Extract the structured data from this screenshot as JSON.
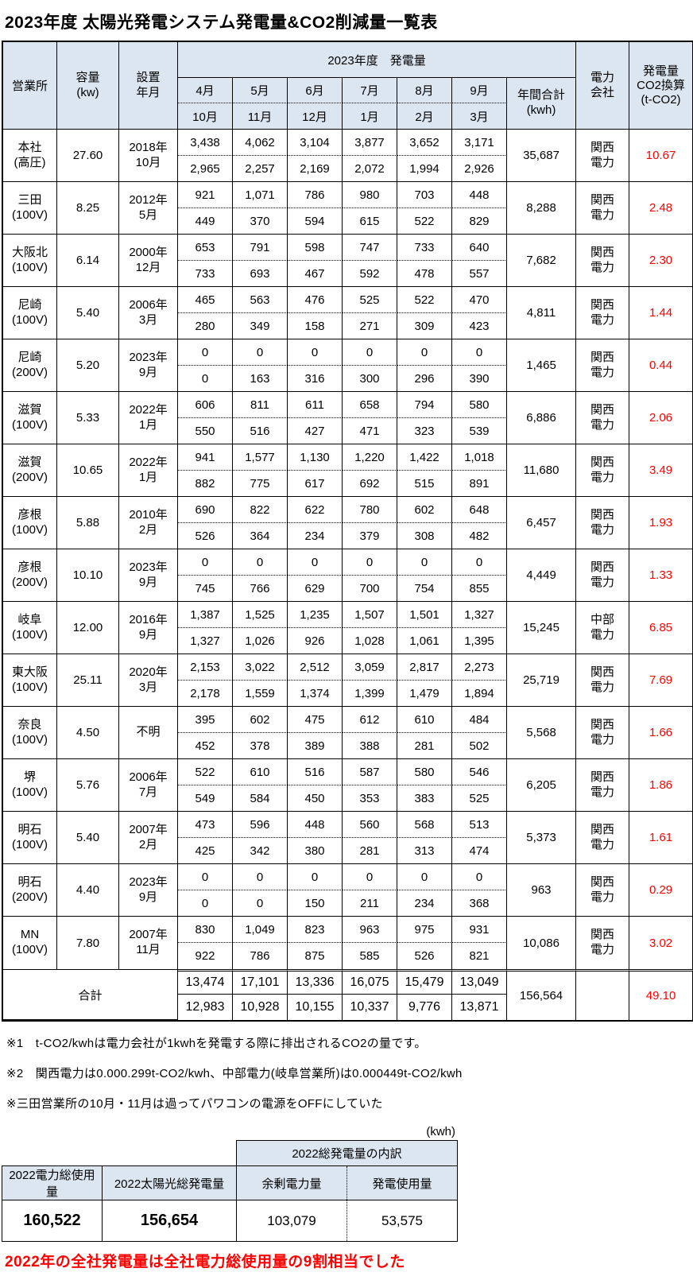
{
  "title": "2023年度 太陽光発電システム発電量&CO2削減量一覧表",
  "colors": {
    "header_bg": "#dce6f1",
    "accent_red": "#ff0000",
    "border": "#000000",
    "comment_marker": "#c00000"
  },
  "table": {
    "col_headers": {
      "office": "営業所",
      "capacity": "容量\n(kw)",
      "installed": "設置\n年月",
      "generation_group": "2023年度　発電量",
      "months_top": [
        "4月",
        "5月",
        "6月",
        "7月",
        "8月",
        "9月"
      ],
      "months_bottom": [
        "10月",
        "11月",
        "12月",
        "1月",
        "2月",
        "3月"
      ],
      "annual": "年間合計\n(kwh)",
      "company": "電力\n会社",
      "co2": "発電量\nCO2換算\n(t-CO2)"
    },
    "rows": [
      {
        "office": "本社\n(高圧)",
        "capacity": "27.60",
        "installed": "2018年\n10月",
        "top": [
          "3,438",
          "4,062",
          "3,104",
          "3,877",
          "3,652",
          "3,171"
        ],
        "bottom": [
          "2,965",
          "2,257",
          "2,169",
          "2,072",
          "1,994",
          "2,926"
        ],
        "annual": "35,687",
        "company": "関西\n電力",
        "co2": "10.67"
      },
      {
        "office": "三田\n(100V)",
        "capacity": "8.25",
        "installed": "2012年\n5月",
        "top": [
          "921",
          "1,071",
          "786",
          "980",
          "703",
          "448"
        ],
        "bottom": [
          "449",
          "370",
          "594",
          "615",
          "522",
          "829"
        ],
        "annual": "8,288",
        "company": "関西\n電力",
        "co2": "2.48",
        "comment_marks_bottom": [
          0,
          1
        ]
      },
      {
        "office": "大阪北\n(100V)",
        "capacity": "6.14",
        "installed": "2000年\n12月",
        "top": [
          "653",
          "791",
          "598",
          "747",
          "733",
          "640"
        ],
        "bottom": [
          "733",
          "693",
          "467",
          "592",
          "478",
          "557"
        ],
        "annual": "7,682",
        "company": "関西\n電力",
        "co2": "2.30"
      },
      {
        "office": "尼崎\n(100V)",
        "capacity": "5.40",
        "installed": "2006年\n3月",
        "top": [
          "465",
          "563",
          "476",
          "525",
          "522",
          "470"
        ],
        "bottom": [
          "280",
          "349",
          "158",
          "271",
          "309",
          "423"
        ],
        "annual": "4,811",
        "company": "関西\n電力",
        "co2": "1.44"
      },
      {
        "office": "尼崎\n(200V)",
        "capacity": "5.20",
        "installed": "2023年\n9月",
        "top": [
          "0",
          "0",
          "0",
          "0",
          "0",
          "0"
        ],
        "bottom": [
          "0",
          "163",
          "316",
          "300",
          "296",
          "390"
        ],
        "annual": "1,465",
        "company": "関西\n電力",
        "co2": "0.44"
      },
      {
        "office": "滋賀\n(100V)",
        "capacity": "5.33",
        "installed": "2022年\n1月",
        "top": [
          "606",
          "811",
          "611",
          "658",
          "794",
          "580"
        ],
        "bottom": [
          "550",
          "516",
          "427",
          "471",
          "323",
          "539"
        ],
        "annual": "6,886",
        "company": "関西\n電力",
        "co2": "2.06"
      },
      {
        "office": "滋賀\n(200V)",
        "capacity": "10.65",
        "installed": "2022年\n1月",
        "top": [
          "941",
          "1,577",
          "1,130",
          "1,220",
          "1,422",
          "1,018"
        ],
        "bottom": [
          "882",
          "775",
          "617",
          "692",
          "515",
          "891"
        ],
        "annual": "11,680",
        "company": "関西\n電力",
        "co2": "3.49"
      },
      {
        "office": "彦根\n(100V)",
        "capacity": "5.88",
        "installed": "2010年\n2月",
        "top": [
          "690",
          "822",
          "622",
          "780",
          "602",
          "648"
        ],
        "bottom": [
          "526",
          "364",
          "234",
          "379",
          "308",
          "482"
        ],
        "annual": "6,457",
        "company": "関西\n電力",
        "co2": "1.93"
      },
      {
        "office": "彦根\n(200V)",
        "capacity": "10.10",
        "installed": "2023年\n9月",
        "top": [
          "0",
          "0",
          "0",
          "0",
          "0",
          "0"
        ],
        "bottom": [
          "745",
          "766",
          "629",
          "700",
          "754",
          "855"
        ],
        "annual": "4,449",
        "company": "関西\n電力",
        "co2": "1.33"
      },
      {
        "office": "岐阜\n(100V)",
        "capacity": "12.00",
        "installed": "2016年\n9月",
        "top": [
          "1,387",
          "1,525",
          "1,235",
          "1,507",
          "1,501",
          "1,327"
        ],
        "bottom": [
          "1,327",
          "1,026",
          "926",
          "1,028",
          "1,061",
          "1,395"
        ],
        "annual": "15,245",
        "company": "中部\n電力",
        "co2": "6.85"
      },
      {
        "office": "東大阪\n(100V)",
        "capacity": "25.11",
        "installed": "2020年\n3月",
        "top": [
          "2,153",
          "3,022",
          "2,512",
          "3,059",
          "2,817",
          "2,273"
        ],
        "bottom": [
          "2,178",
          "1,559",
          "1,374",
          "1,399",
          "1,479",
          "1,894"
        ],
        "annual": "25,719",
        "company": "関西\n電力",
        "co2": "7.69"
      },
      {
        "office": "奈良\n(100V)",
        "capacity": "4.50",
        "installed": "不明",
        "top": [
          "395",
          "602",
          "475",
          "612",
          "610",
          "484"
        ],
        "bottom": [
          "452",
          "378",
          "389",
          "388",
          "281",
          "502"
        ],
        "annual": "5,568",
        "company": "関西\n電力",
        "co2": "1.66"
      },
      {
        "office": "堺\n(100V)",
        "capacity": "5.76",
        "installed": "2006年\n7月",
        "top": [
          "522",
          "610",
          "516",
          "587",
          "580",
          "546"
        ],
        "bottom": [
          "549",
          "584",
          "450",
          "353",
          "383",
          "525"
        ],
        "annual": "6,205",
        "company": "関西\n電力",
        "co2": "1.86"
      },
      {
        "office": "明石\n(100V)",
        "capacity": "5.40",
        "installed": "2007年\n2月",
        "top": [
          "473",
          "596",
          "448",
          "560",
          "568",
          "513"
        ],
        "bottom": [
          "425",
          "342",
          "380",
          "281",
          "313",
          "474"
        ],
        "annual": "5,373",
        "company": "関西\n電力",
        "co2": "1.61"
      },
      {
        "office": "明石\n(200V)",
        "capacity": "4.40",
        "installed": "2023年\n9月",
        "top": [
          "0",
          "0",
          "0",
          "0",
          "0",
          "0"
        ],
        "bottom": [
          "0",
          "0",
          "150",
          "211",
          "234",
          "368"
        ],
        "annual": "963",
        "company": "関西\n電力",
        "co2": "0.29"
      },
      {
        "office": "MN\n(100V)",
        "capacity": "7.80",
        "installed": "2007年\n11月",
        "top": [
          "830",
          "1,049",
          "823",
          "963",
          "975",
          "931"
        ],
        "bottom": [
          "922",
          "786",
          "875",
          "585",
          "526",
          "821"
        ],
        "annual": "10,086",
        "company": "関西\n電力",
        "co2": "3.02"
      }
    ],
    "total": {
      "label": "合計",
      "top": [
        "13,474",
        "17,101",
        "13,336",
        "16,075",
        "15,479",
        "13,049"
      ],
      "bottom": [
        "12,983",
        "10,928",
        "10,155",
        "10,337",
        "9,776",
        "13,871"
      ],
      "annual": "156,564",
      "company": "",
      "co2": "49.10"
    }
  },
  "notes": [
    "※1　t-CO2/kwhは電力会社が1kwhを発電する際に排出されるCO2の量です。",
    "※2　関西電力は0.000.299t-CO2/kwh、中部電力(岐阜営業所)は0.000449t-CO2/kwh",
    "※三田営業所の10月・11月は過ってパワコンの電源をOFFにしていた"
  ],
  "summary": {
    "unit_label": "(kwh)",
    "group_header": "2022総発電量の内訳",
    "columns": [
      {
        "label": "2022電力総使用量",
        "value": "160,522"
      },
      {
        "label": "2022太陽光総発電量",
        "value": "156,654"
      },
      {
        "label": "余剰電力量",
        "value": "103,079"
      },
      {
        "label": "発電使用量",
        "value": "53,575"
      }
    ],
    "footer_note": "2022年の全社発電量は全社電力総使用量の9割相当でした"
  }
}
